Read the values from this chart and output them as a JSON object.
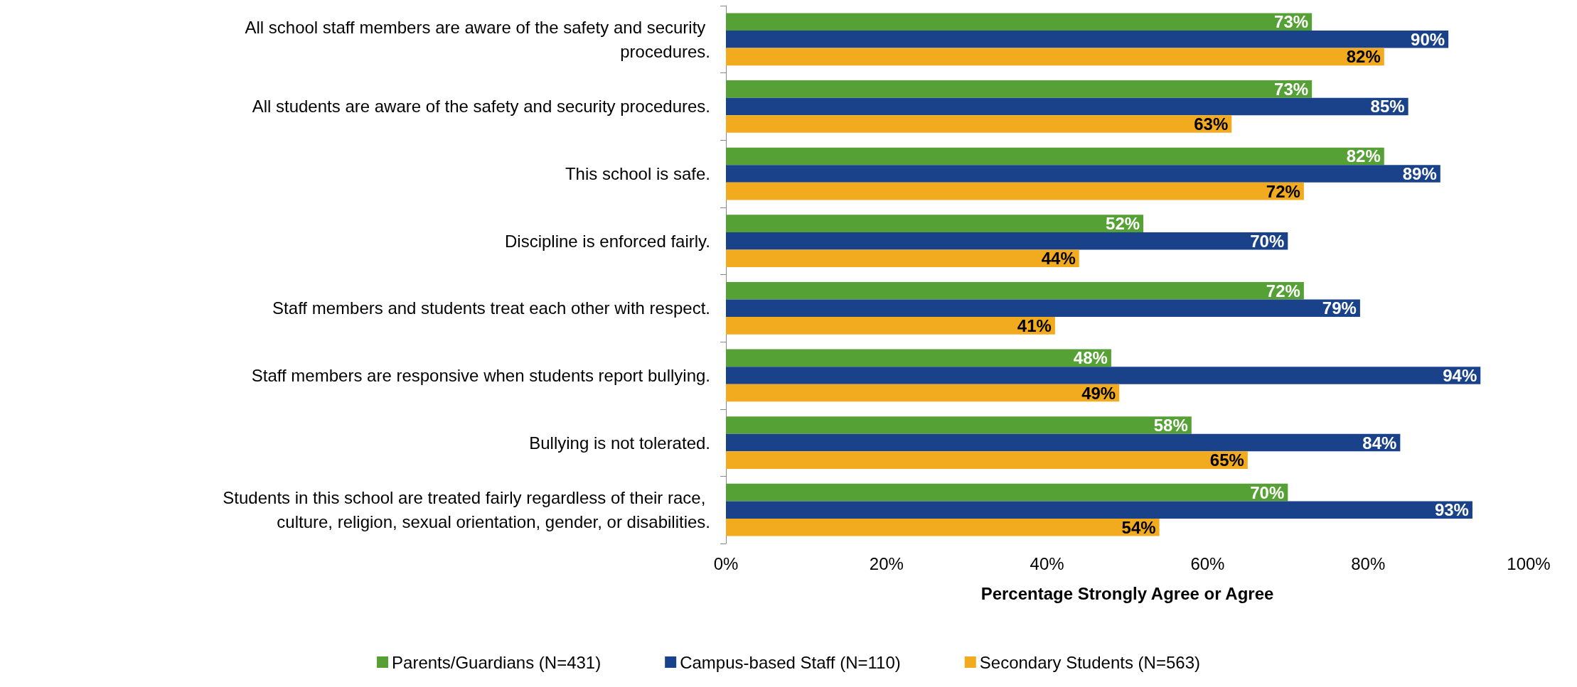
{
  "chart_data": {
    "type": "bar",
    "orientation": "horizontal",
    "xlabel": "Percentage Strongly Agree or Agree",
    "categories": [
      "All school staff members are aware of the safety and security procedures.",
      "All students are aware of the safety and security procedures.",
      "This school is safe.",
      "Discipline is enforced fairly.",
      "Staff members and students treat each other with respect.",
      "Staff members are responsive when students report bullying.",
      "Bullying is not tolerated.",
      "Students in this school are treated fairly regardless of their race, culture, religion, sexual orientation, gender, or disabilities."
    ],
    "series": [
      {
        "name": "Parents/Guardians (N=431)",
        "color": "#56a136",
        "values": [
          73,
          73,
          82,
          52,
          72,
          48,
          58,
          70
        ],
        "value_labels": [
          "73%",
          "73%",
          "82%",
          "52%",
          "72%",
          "48%",
          "58%",
          "70%"
        ]
      },
      {
        "name": "Campus-based Staff (N=110)",
        "color": "#1a428a",
        "values": [
          90,
          85,
          89,
          70,
          79,
          94,
          84,
          93
        ],
        "value_labels": [
          "90%",
          "85%",
          "89%",
          "70%",
          "79%",
          "94%",
          "84%",
          "93%"
        ]
      },
      {
        "name": "Secondary Students (N=563)",
        "color": "#f2ab1e",
        "values": [
          82,
          63,
          72,
          44,
          41,
          49,
          65,
          54
        ],
        "value_labels": [
          "82%",
          "63%",
          "72%",
          "44%",
          "41%",
          "49%",
          "65%",
          "54%"
        ]
      }
    ],
    "xlim": [
      0,
      100
    ],
    "xticks": [
      {
        "value": 0,
        "label": "0%"
      },
      {
        "value": 20,
        "label": "20%"
      },
      {
        "value": 40,
        "label": "40%"
      },
      {
        "value": 60,
        "label": "60%"
      },
      {
        "value": 80,
        "label": "80%"
      },
      {
        "value": 100,
        "label": "100%"
      }
    ],
    "grid": false,
    "legend": "bottom"
  }
}
